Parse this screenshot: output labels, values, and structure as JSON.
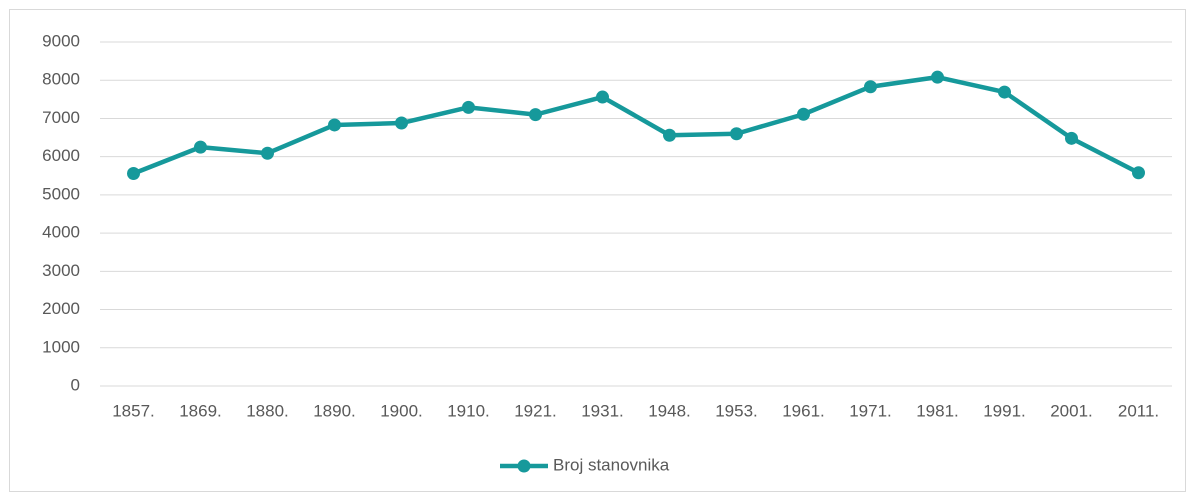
{
  "chart_data": {
    "type": "line",
    "categories": [
      "1857.",
      "1869.",
      "1880.",
      "1890.",
      "1900.",
      "1910.",
      "1921.",
      "1931.",
      "1948.",
      "1953.",
      "1961.",
      "1971.",
      "1981.",
      "1991.",
      "2001.",
      "2011."
    ],
    "series": [
      {
        "name": "Broj stanovnika",
        "color": "#16999b",
        "values": [
          5560,
          6250,
          6090,
          6830,
          6880,
          7290,
          7100,
          7560,
          6560,
          6600,
          7110,
          7830,
          8080,
          7690,
          6480,
          5580
        ]
      }
    ],
    "ylim": [
      0,
      9000
    ],
    "yticks": [
      0,
      1000,
      2000,
      3000,
      4000,
      5000,
      6000,
      7000,
      8000,
      9000
    ],
    "grid": true,
    "legend": "bottom"
  }
}
